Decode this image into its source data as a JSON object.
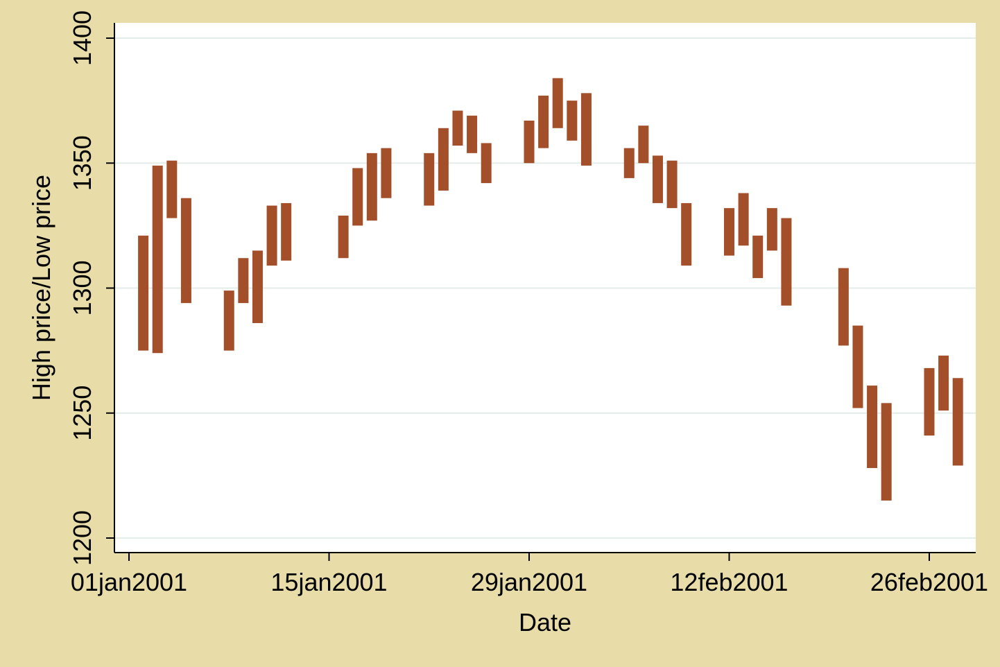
{
  "chart_data": {
    "type": "range-bar",
    "title": "",
    "xlabel": "Date",
    "ylabel": "High price/Low price",
    "ylim": [
      1200,
      1400
    ],
    "yticks": [
      1200,
      1250,
      1300,
      1350,
      1400
    ],
    "xticks": [
      "01jan2001",
      "15jan2001",
      "29jan2001",
      "12feb2001",
      "26feb2001"
    ],
    "grid": true,
    "colors": {
      "background": "#e8dca8",
      "plot_background": "#ffffff",
      "bar": "#a3502a",
      "grid": "#e3ece8"
    },
    "series": [
      {
        "date": "2001-01-02",
        "high": 1321,
        "low": 1275
      },
      {
        "date": "2001-01-03",
        "high": 1349,
        "low": 1274
      },
      {
        "date": "2001-01-04",
        "high": 1351,
        "low": 1328
      },
      {
        "date": "2001-01-05",
        "high": 1336,
        "low": 1294
      },
      {
        "date": "2001-01-08",
        "high": 1299,
        "low": 1275
      },
      {
        "date": "2001-01-09",
        "high": 1312,
        "low": 1294
      },
      {
        "date": "2001-01-10",
        "high": 1315,
        "low": 1286
      },
      {
        "date": "2001-01-11",
        "high": 1333,
        "low": 1309
      },
      {
        "date": "2001-01-12",
        "high": 1334,
        "low": 1311
      },
      {
        "date": "2001-01-16",
        "high": 1329,
        "low": 1312
      },
      {
        "date": "2001-01-17",
        "high": 1348,
        "low": 1325
      },
      {
        "date": "2001-01-18",
        "high": 1354,
        "low": 1327
      },
      {
        "date": "2001-01-19",
        "high": 1356,
        "low": 1336
      },
      {
        "date": "2001-01-22",
        "high": 1354,
        "low": 1333
      },
      {
        "date": "2001-01-23",
        "high": 1364,
        "low": 1339
      },
      {
        "date": "2001-01-24",
        "high": 1371,
        "low": 1357
      },
      {
        "date": "2001-01-25",
        "high": 1369,
        "low": 1354
      },
      {
        "date": "2001-01-26",
        "high": 1358,
        "low": 1342
      },
      {
        "date": "2001-01-29",
        "high": 1367,
        "low": 1350
      },
      {
        "date": "2001-01-30",
        "high": 1377,
        "low": 1356
      },
      {
        "date": "2001-01-31",
        "high": 1384,
        "low": 1364
      },
      {
        "date": "2001-02-01",
        "high": 1375,
        "low": 1359
      },
      {
        "date": "2001-02-02",
        "high": 1378,
        "low": 1349
      },
      {
        "date": "2001-02-05",
        "high": 1356,
        "low": 1344
      },
      {
        "date": "2001-02-06",
        "high": 1365,
        "low": 1350
      },
      {
        "date": "2001-02-07",
        "high": 1353,
        "low": 1334
      },
      {
        "date": "2001-02-08",
        "high": 1351,
        "low": 1332
      },
      {
        "date": "2001-02-09",
        "high": 1334,
        "low": 1309
      },
      {
        "date": "2001-02-12",
        "high": 1332,
        "low": 1313
      },
      {
        "date": "2001-02-13",
        "high": 1338,
        "low": 1317
      },
      {
        "date": "2001-02-14",
        "high": 1321,
        "low": 1304
      },
      {
        "date": "2001-02-15",
        "high": 1332,
        "low": 1315
      },
      {
        "date": "2001-02-16",
        "high": 1328,
        "low": 1293
      },
      {
        "date": "2001-02-20",
        "high": 1308,
        "low": 1277
      },
      {
        "date": "2001-02-21",
        "high": 1285,
        "low": 1252
      },
      {
        "date": "2001-02-22",
        "high": 1261,
        "low": 1228
      },
      {
        "date": "2001-02-23",
        "high": 1254,
        "low": 1215
      },
      {
        "date": "2001-02-26",
        "high": 1268,
        "low": 1241
      },
      {
        "date": "2001-02-27",
        "high": 1273,
        "low": 1251
      },
      {
        "date": "2001-02-28",
        "high": 1264,
        "low": 1229
      }
    ]
  }
}
